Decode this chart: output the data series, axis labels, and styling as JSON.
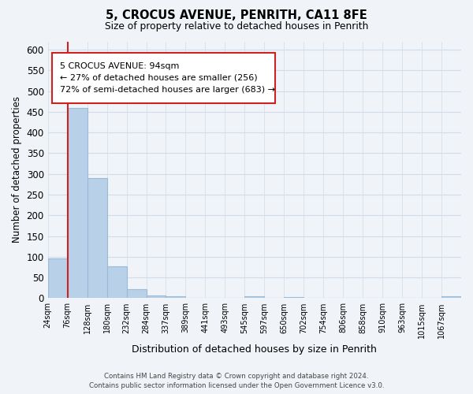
{
  "title": "5, CROCUS AVENUE, PENRITH, CA11 8FE",
  "subtitle": "Size of property relative to detached houses in Penrith",
  "xlabel": "Distribution of detached houses by size in Penrith",
  "ylabel": "Number of detached properties",
  "bin_labels": [
    "24sqm",
    "76sqm",
    "128sqm",
    "180sqm",
    "232sqm",
    "284sqm",
    "337sqm",
    "389sqm",
    "441sqm",
    "493sqm",
    "545sqm",
    "597sqm",
    "650sqm",
    "702sqm",
    "754sqm",
    "806sqm",
    "858sqm",
    "910sqm",
    "963sqm",
    "1015sqm",
    "1067sqm"
  ],
  "bar_values": [
    95,
    460,
    290,
    77,
    22,
    7,
    5,
    0,
    0,
    0,
    4,
    0,
    3,
    0,
    0,
    0,
    0,
    0,
    0,
    0,
    5
  ],
  "bar_color": "#b8d0e8",
  "bar_edge_color": "#99bbd8",
  "ylim": [
    0,
    620
  ],
  "yticks": [
    0,
    50,
    100,
    150,
    200,
    250,
    300,
    350,
    400,
    450,
    500,
    550,
    600
  ],
  "red_line_x": 1.0,
  "annotation_box_text": "5 CROCUS AVENUE: 94sqm\n← 27% of detached houses are smaller (256)\n72% of semi-detached houses are larger (683) →",
  "red_line_color": "#cc2222",
  "footer_line1": "Contains HM Land Registry data © Crown copyright and database right 2024.",
  "footer_line2": "Contains public sector information licensed under the Open Government Licence v3.0.",
  "background_color": "#f0f4f8",
  "grid_color": "#d0dce8"
}
